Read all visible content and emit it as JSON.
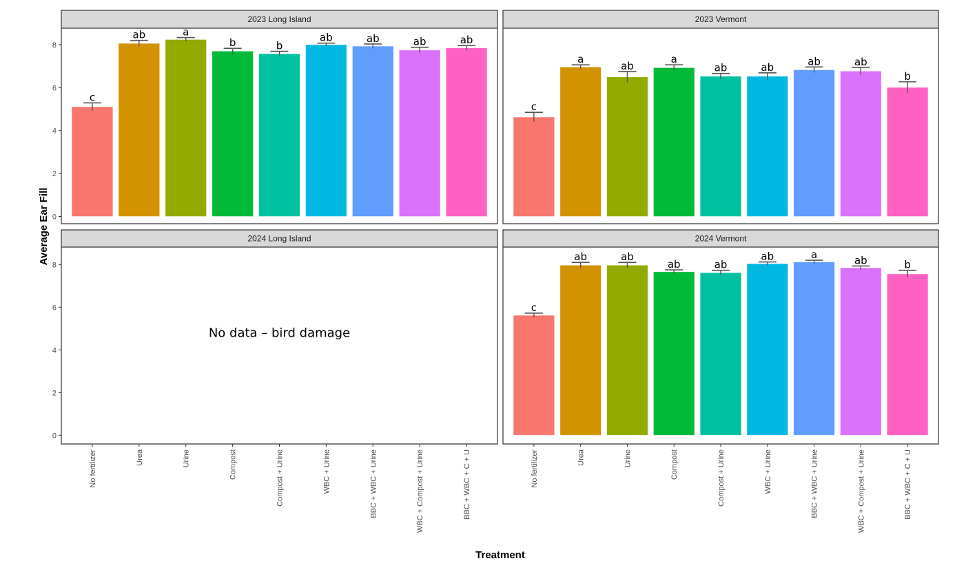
{
  "chart_data": {
    "type": "bar",
    "title": "",
    "xlabel": "Treatment",
    "ylabel": "Average Ear Fill",
    "ylim": [
      0,
      8.8
    ],
    "yticks": [
      0,
      2,
      4,
      6,
      8
    ],
    "grid": false,
    "legend": "none",
    "categories": [
      "No fertilizer",
      "Urea",
      "Urine",
      "Compost",
      "Compost + Urine",
      "WBC + Urine",
      "BBC + WBC + Urine",
      "WBC + Compost + Urine",
      "BBC + WBC + C + U"
    ],
    "colors": [
      "#F8766D",
      "#D39200",
      "#93AA00",
      "#00BA38",
      "#00C19F",
      "#00B9E3",
      "#619CFF",
      "#DB72FB",
      "#FF61C3"
    ],
    "panels": [
      {
        "title": "2023 Long Island",
        "values": [
          5.11,
          8.06,
          8.24,
          7.7,
          7.58,
          8.0,
          7.93,
          7.75,
          7.85
        ],
        "error_upper": [
          5.29,
          8.2,
          8.33,
          7.83,
          7.69,
          8.07,
          8.03,
          7.88,
          7.96
        ],
        "letters": [
          "c",
          "ab",
          "a",
          "b",
          "b",
          "ab",
          "ab",
          "ab",
          "ab"
        ],
        "annotation": null
      },
      {
        "title": "2023 Vermont",
        "values": [
          4.63,
          6.96,
          6.5,
          6.93,
          6.53,
          6.53,
          6.83,
          6.77,
          6.01
        ],
        "error_upper": [
          4.85,
          7.06,
          6.75,
          7.06,
          6.66,
          6.69,
          6.96,
          6.94,
          6.27
        ],
        "letters": [
          "c",
          "a",
          "ab",
          "a",
          "ab",
          "ab",
          "ab",
          "ab",
          "b"
        ],
        "annotation": null
      },
      {
        "title": "2024 Long Island",
        "values": [],
        "error_upper": [],
        "letters": [],
        "annotation": "No data – bird damage"
      },
      {
        "title": "2024 Vermont",
        "values": [
          5.62,
          7.97,
          7.97,
          7.66,
          7.62,
          8.04,
          8.12,
          7.85,
          7.56
        ],
        "error_upper": [
          5.72,
          8.1,
          8.1,
          7.75,
          7.73,
          8.12,
          8.2,
          7.93,
          7.73
        ],
        "letters": [
          "c",
          "ab",
          "ab",
          "ab",
          "ab",
          "ab",
          "a",
          "ab",
          "b"
        ],
        "annotation": null
      }
    ]
  }
}
